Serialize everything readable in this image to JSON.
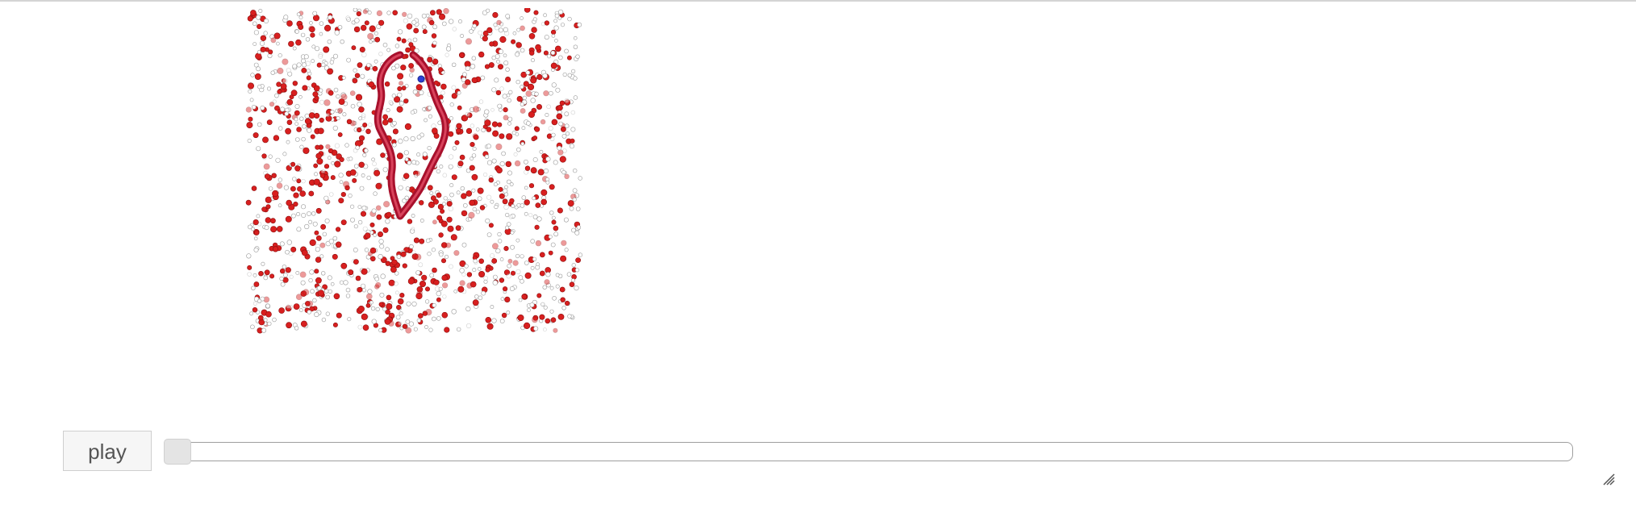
{
  "widget": {
    "type": "molecular-trajectory-viewer",
    "description_icon": "molecule-viewport"
  },
  "controls": {
    "play_label": "play",
    "frame_progress": 0.0
  },
  "colors": {
    "oxygen": "#d81f1f",
    "hydrogen": "#ffffff",
    "protein_ribbon": "#a8102c",
    "nitrogen": "#2b3fd6",
    "track_border": "#9e9e9e",
    "button_bg": "#f6f6f6"
  }
}
